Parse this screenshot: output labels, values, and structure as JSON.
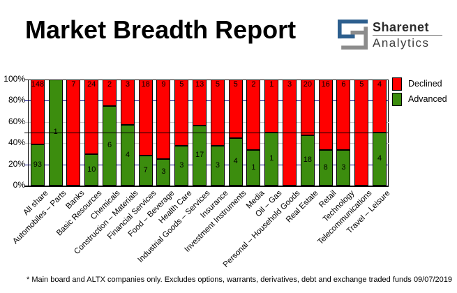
{
  "header": {
    "title": "Market Breadth Report",
    "logo": {
      "line1": "Sharenet",
      "line2": "Analytics",
      "blue": "#2d5f8e",
      "gray": "#8c8c8c"
    }
  },
  "chart_data": {
    "type": "bar",
    "stacked": true,
    "percent_stacked": true,
    "title": "Market Breadth Report",
    "categories": [
      "All share",
      "Automobiles – Parts",
      "Banks",
      "Basic Resources",
      "Chemicals",
      "Construction – Materials",
      "Financial Services",
      "Food – Beverage",
      "Health Care",
      "Industrial Goods – Services",
      "Insurance",
      "Investment Instruments",
      "Media",
      "Oil – Gas",
      "Personal – Household Goods",
      "Real Estate",
      "Retail",
      "Technology",
      "Telecommunications",
      "Travel – Leisure"
    ],
    "series": [
      {
        "name": "Declined",
        "color": "#ff0000",
        "values": [
          148,
          0,
          7,
          24,
          2,
          3,
          18,
          9,
          5,
          13,
          5,
          5,
          2,
          1,
          3,
          20,
          16,
          6,
          5,
          4
        ]
      },
      {
        "name": "Advanced",
        "color": "#3c8d0e",
        "values": [
          93,
          1,
          0,
          10,
          6,
          4,
          7,
          3,
          3,
          17,
          3,
          4,
          1,
          1,
          0,
          18,
          8,
          3,
          0,
          4
        ]
      }
    ],
    "y_ticks": [
      "0%",
      "20%",
      "40%",
      "60%",
      "80%",
      "100%"
    ],
    "ylim": [
      0,
      100
    ],
    "grid": {
      "navy_lines_pct": [
        20,
        80
      ],
      "gray_lines_pct": [
        40,
        60
      ],
      "top_line_pct": 100,
      "reference_line_pct": 50,
      "navy_color": "#000080",
      "gray_color": "#c8c8c8"
    },
    "legend_position": "top-right"
  },
  "footer": {
    "note": "* Main board and ALTX companies only. Excludes options, warrants, derivatives, debt and exchange traded funds",
    "date": "09/07/2019"
  }
}
